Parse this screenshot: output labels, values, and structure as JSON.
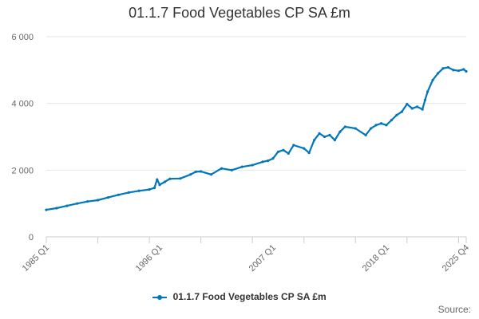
{
  "chart_data": {
    "type": "line",
    "title": "01.1.7 Food Vegetables CP SA £m",
    "xlabel": "",
    "ylabel": "",
    "x_tick_labels": [
      "1985 Q1",
      "1996 Q1",
      "2007 Q1",
      "2018 Q1",
      "2025 Q4"
    ],
    "x_tick_positions": [
      1985.0,
      1996.0,
      2007.0,
      2018.0,
      2025.75
    ],
    "x_range": [
      1985.0,
      2025.75
    ],
    "y_ticks": [
      0,
      2000,
      4000,
      6000
    ],
    "y_tick_labels": [
      "0",
      "2 000",
      "4 000",
      "6 000"
    ],
    "ylim": [
      0,
      6000
    ],
    "grid": true,
    "legend_position": "bottom-center",
    "series": [
      {
        "name": "01.1.7 Food Vegetables CP SA £m",
        "color": "#0077bb",
        "points": [
          [
            1985.0,
            810
          ],
          [
            1986.0,
            860
          ],
          [
            1987.0,
            930
          ],
          [
            1988.0,
            1000
          ],
          [
            1989.0,
            1060
          ],
          [
            1990.0,
            1100
          ],
          [
            1991.0,
            1180
          ],
          [
            1992.0,
            1260
          ],
          [
            1993.0,
            1330
          ],
          [
            1994.0,
            1380
          ],
          [
            1995.0,
            1420
          ],
          [
            1995.5,
            1470
          ],
          [
            1995.75,
            1720
          ],
          [
            1996.0,
            1560
          ],
          [
            1996.5,
            1650
          ],
          [
            1997.0,
            1740
          ],
          [
            1998.0,
            1750
          ],
          [
            1999.0,
            1870
          ],
          [
            1999.5,
            1950
          ],
          [
            2000.0,
            1960
          ],
          [
            2001.0,
            1870
          ],
          [
            2002.0,
            2050
          ],
          [
            2003.0,
            2000
          ],
          [
            2004.0,
            2100
          ],
          [
            2005.0,
            2150
          ],
          [
            2006.0,
            2250
          ],
          [
            2006.5,
            2280
          ],
          [
            2007.0,
            2350
          ],
          [
            2007.5,
            2550
          ],
          [
            2008.0,
            2600
          ],
          [
            2008.5,
            2500
          ],
          [
            2009.0,
            2750
          ],
          [
            2010.0,
            2650
          ],
          [
            2010.5,
            2520
          ],
          [
            2011.0,
            2900
          ],
          [
            2011.5,
            3100
          ],
          [
            2012.0,
            3000
          ],
          [
            2012.5,
            3050
          ],
          [
            2013.0,
            2900
          ],
          [
            2013.5,
            3150
          ],
          [
            2014.0,
            3300
          ],
          [
            2015.0,
            3250
          ],
          [
            2016.0,
            3050
          ],
          [
            2016.5,
            3250
          ],
          [
            2017.0,
            3350
          ],
          [
            2017.5,
            3400
          ],
          [
            2018.0,
            3350
          ],
          [
            2018.5,
            3500
          ],
          [
            2019.0,
            3650
          ],
          [
            2019.5,
            3750
          ],
          [
            2020.0,
            3980
          ],
          [
            2020.5,
            3850
          ],
          [
            2021.0,
            3900
          ],
          [
            2021.5,
            3820
          ],
          [
            2021.75,
            4100
          ],
          [
            2022.0,
            4350
          ],
          [
            2022.5,
            4700
          ],
          [
            2023.0,
            4900
          ],
          [
            2023.5,
            5050
          ],
          [
            2024.0,
            5080
          ],
          [
            2024.5,
            5000
          ],
          [
            2025.0,
            4980
          ],
          [
            2025.5,
            5020
          ],
          [
            2025.75,
            4960
          ]
        ]
      }
    ],
    "source_label": "Source:"
  }
}
